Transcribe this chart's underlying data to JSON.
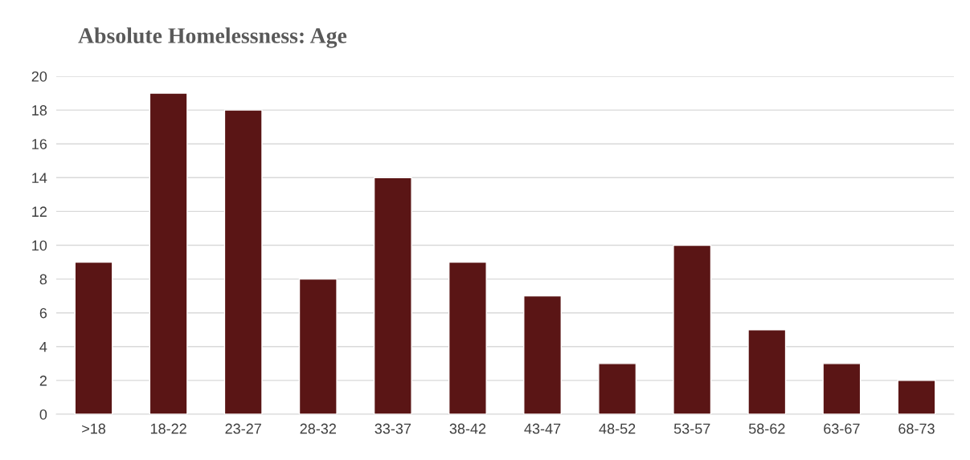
{
  "chart_data": {
    "type": "bar",
    "title": "Absolute Homelessness: Age",
    "categories": [
      ">18",
      "18-22",
      "23-27",
      "28-32",
      "33-37",
      "38-42",
      "43-47",
      "48-52",
      "53-57",
      "58-62",
      "63-67",
      "68-73"
    ],
    "values": [
      9,
      19,
      18,
      8,
      14,
      9,
      7,
      3,
      10,
      5,
      3,
      2
    ],
    "color": "#5a1515",
    "ylim": [
      0,
      20
    ],
    "yticks": [
      0,
      2,
      4,
      6,
      8,
      10,
      12,
      14,
      16,
      18,
      20
    ],
    "grid": "y"
  }
}
